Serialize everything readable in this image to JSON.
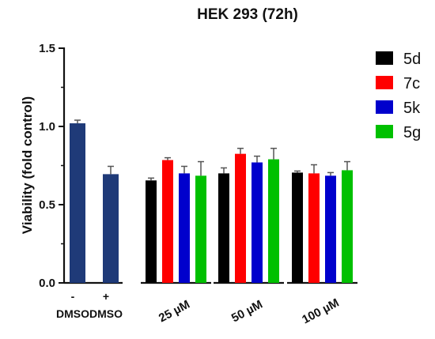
{
  "chart_data": {
    "type": "bar",
    "title": "HEK 293 (72h)",
    "ylabel": "Viability (fold control)",
    "ylim": [
      0,
      1.5
    ],
    "yticks": [
      "0.0",
      "0.5",
      "1.0",
      "1.5"
    ],
    "control_color": "#1f3a78",
    "controls": [
      {
        "label_top": "-",
        "label_bottom": "DMSO",
        "value": 1.02,
        "error": 0.02
      },
      {
        "label_top": "+",
        "label_bottom": "DMSO",
        "value": 0.695,
        "error": 0.05
      }
    ],
    "groups": [
      "25 µM",
      "50 µM",
      "100 µM"
    ],
    "series": [
      {
        "name": "5d",
        "color": "#000000",
        "values": [
          0.655,
          0.7,
          0.705
        ],
        "errors": [
          0.015,
          0.035,
          0.01
        ]
      },
      {
        "name": "7c",
        "color": "#ff0000",
        "values": [
          0.785,
          0.825,
          0.7
        ],
        "errors": [
          0.015,
          0.035,
          0.055
        ]
      },
      {
        "name": "5k",
        "color": "#0000cc",
        "values": [
          0.7,
          0.77,
          0.685
        ],
        "errors": [
          0.045,
          0.04,
          0.02
        ]
      },
      {
        "name": "5g",
        "color": "#00c000",
        "values": [
          0.685,
          0.79,
          0.72
        ],
        "errors": [
          0.09,
          0.07,
          0.055
        ]
      }
    ],
    "legend_position": "right"
  }
}
